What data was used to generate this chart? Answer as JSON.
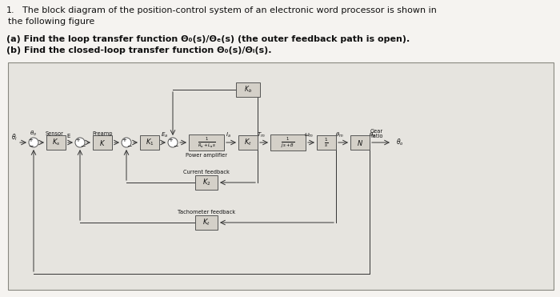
{
  "text1": "1.",
  "text2": "The block diagram of the position-control system of an electronic word processor is shown in",
  "text3": "the following figure",
  "text_a": "(a) Find the loop transfer function Θ₀(s)/Θₑ(s) (the outer feedback path is open).",
  "text_b": "(b) Find the closed-loop transfer function Θ₀(s)/Θᵢ(s).",
  "fig_bg": "#f0eeeb",
  "diag_bg": "#e8e6e2",
  "box_fill": "#d4d0c8",
  "box_edge": "#555555",
  "line_col": "#333333",
  "txt_col": "#111111"
}
